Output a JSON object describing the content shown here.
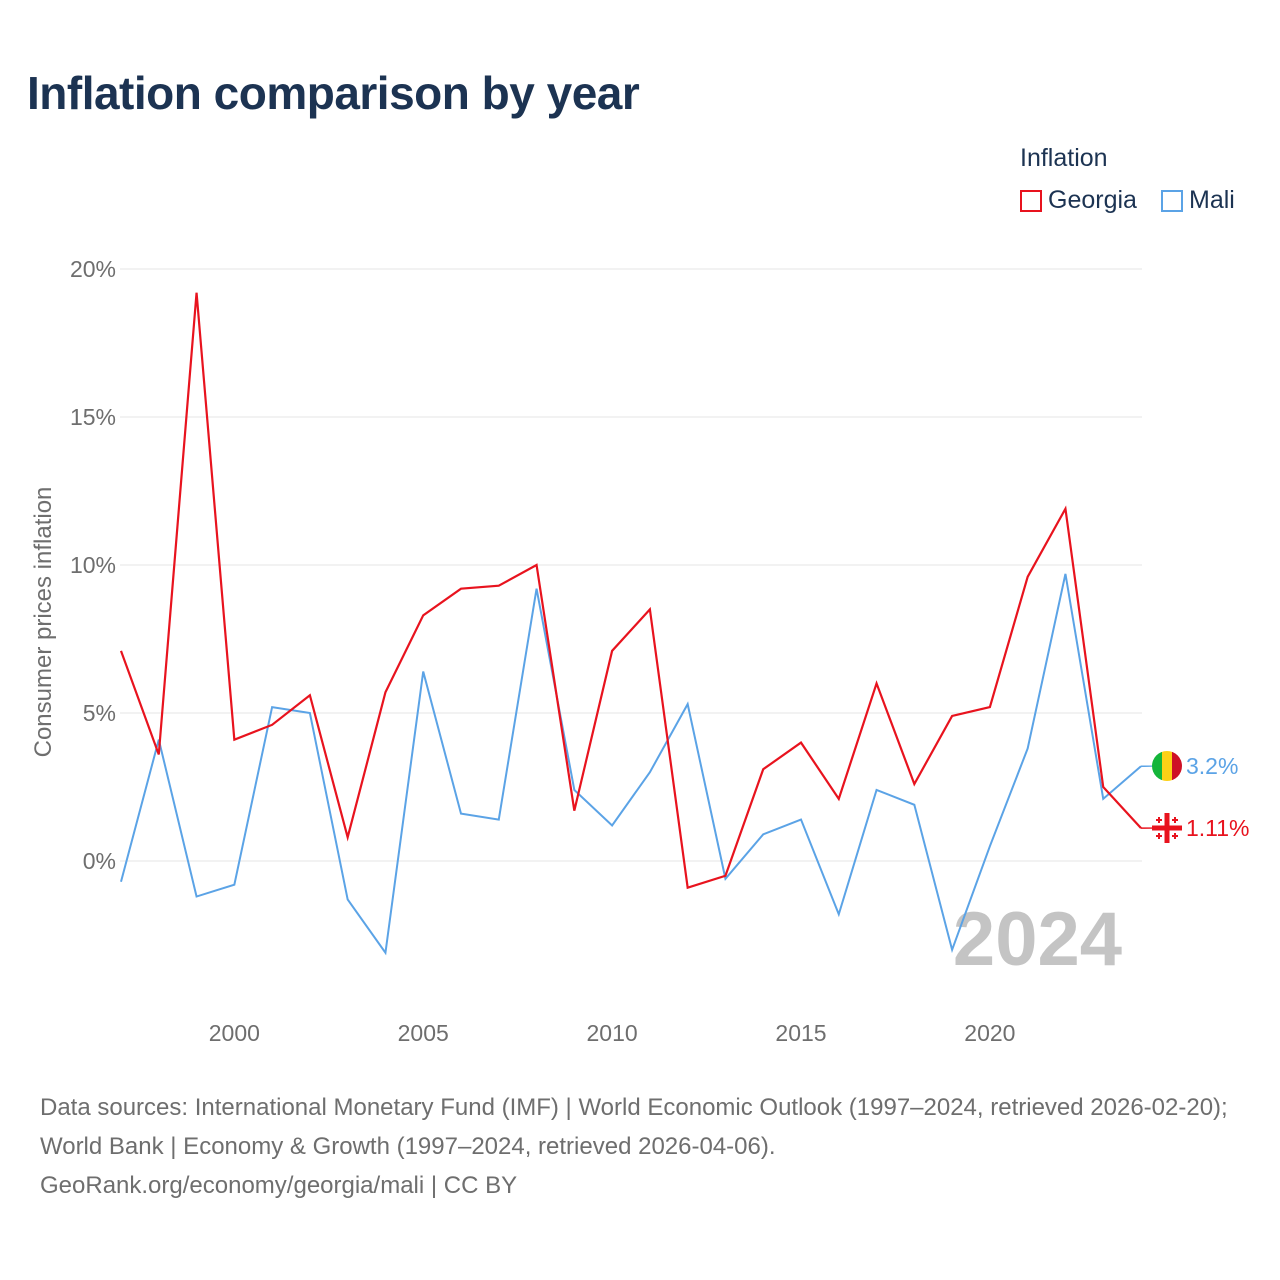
{
  "title": "Inflation comparison by year",
  "legend": {
    "title": "Inflation",
    "items": [
      {
        "label": "Georgia",
        "color": "#e8131e"
      },
      {
        "label": "Mali",
        "color": "#5ba3e6"
      }
    ]
  },
  "chart_data": {
    "type": "line",
    "ylabel": "Consumer prices inflation",
    "xlabel": "",
    "ylim": [
      -4.2,
      20
    ],
    "xlim": [
      1997,
      2024
    ],
    "yticks": [
      0,
      5,
      10,
      15,
      20
    ],
    "ytick_labels": [
      "0%",
      "5%",
      "10%",
      "15%",
      "20%"
    ],
    "xticks": [
      2000,
      2005,
      2010,
      2015,
      2020
    ],
    "xtick_labels": [
      "2000",
      "2005",
      "2010",
      "2015",
      "2020"
    ],
    "grid": true,
    "year_watermark": "2024",
    "x": [
      1997,
      1998,
      1999,
      2000,
      2001,
      2002,
      2003,
      2004,
      2005,
      2006,
      2007,
      2008,
      2009,
      2010,
      2011,
      2012,
      2013,
      2014,
      2015,
      2016,
      2017,
      2018,
      2019,
      2020,
      2021,
      2022,
      2023,
      2024
    ],
    "series": [
      {
        "name": "Georgia",
        "color": "#e8131e",
        "end_label": "1.11%",
        "values": [
          7.1,
          3.6,
          19.2,
          4.1,
          4.6,
          5.6,
          0.8,
          5.7,
          8.3,
          9.2,
          9.3,
          10.0,
          1.7,
          7.1,
          8.5,
          -0.9,
          -0.5,
          3.1,
          4.0,
          2.1,
          6.0,
          2.6,
          4.9,
          5.2,
          9.6,
          11.9,
          2.5,
          1.11
        ]
      },
      {
        "name": "Mali",
        "color": "#5ba3e6",
        "end_label": "3.2%",
        "values": [
          -0.7,
          4.1,
          -1.2,
          -0.8,
          5.2,
          5.0,
          -1.3,
          -3.1,
          6.4,
          1.6,
          1.4,
          9.2,
          2.4,
          1.2,
          3.0,
          5.3,
          -0.6,
          0.9,
          1.4,
          -1.8,
          2.4,
          1.9,
          -3.0,
          0.5,
          3.8,
          9.7,
          2.1,
          3.2
        ]
      }
    ]
  },
  "footer": {
    "sources": "Data sources: International Monetary Fund (IMF) | World Economic Outlook (1997–2024, retrieved 2026-02-20); World Bank | Economy & Growth (1997–2024, retrieved 2026-04-06).",
    "credit": "GeoRank.org/economy/georgia/mali | CC BY"
  }
}
